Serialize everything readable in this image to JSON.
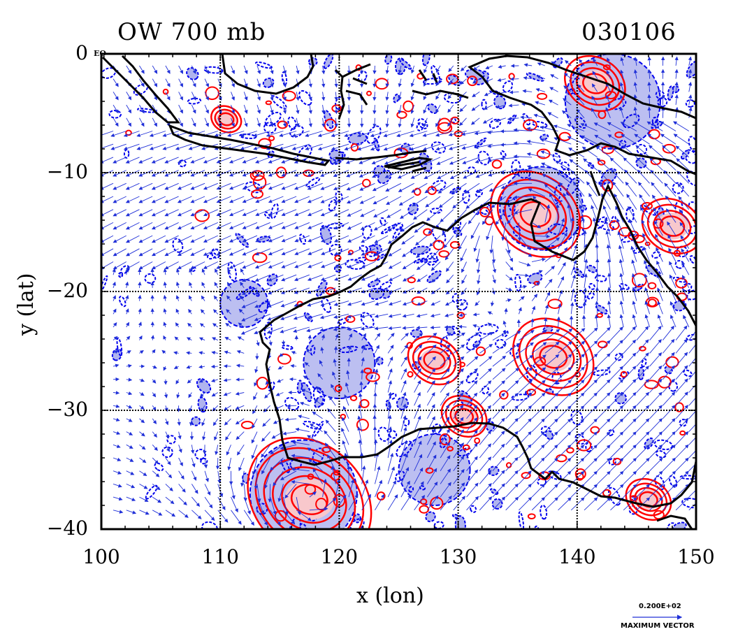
{
  "title": {
    "left": "OW 700 mb",
    "right": "030106"
  },
  "corner_tag": "EQ",
  "axes": {
    "xlabel": "x (lon)",
    "ylabel": "y (lat)",
    "xticks": [
      "100",
      "110",
      "120",
      "130",
      "140",
      "150"
    ],
    "yticks": [
      "0",
      "−10",
      "−20",
      "−30",
      "−40"
    ],
    "xrange": [
      100,
      150
    ],
    "yrange": [
      -40,
      0
    ],
    "grid": true
  },
  "reference_vector": {
    "value": "0.200E+02",
    "label": "MAXIMUM VECTOR"
  },
  "colors": {
    "coastline": "#000000",
    "positive_contour": "#ff0000",
    "positive_fill": "#f8c8cc",
    "negative_contour": "#0000ee",
    "negative_fill": "#b0b4ee",
    "vector": "#2030d8",
    "grid": "#000000"
  },
  "features": {
    "positive_centers": [
      {
        "lon": 117.5,
        "lat": -37.5,
        "strength": 1.0
      },
      {
        "lon": 136.5,
        "lat": -13.5,
        "strength": 0.8
      },
      {
        "lon": 138.0,
        "lat": -25.5,
        "strength": 0.7
      },
      {
        "lon": 128.0,
        "lat": -25.8,
        "strength": 0.5
      },
      {
        "lon": 141.5,
        "lat": -2.5,
        "strength": 0.6
      },
      {
        "lon": 148.0,
        "lat": -14.5,
        "strength": 0.6
      },
      {
        "lon": 130.5,
        "lat": -30.5,
        "strength": 0.4
      },
      {
        "lon": 110.5,
        "lat": -5.5,
        "strength": 0.3
      },
      {
        "lon": 146.0,
        "lat": -37.5,
        "strength": 0.4
      }
    ],
    "negative_regions": [
      {
        "lon": 117.0,
        "lat": -37.0,
        "radius": 4.5
      },
      {
        "lon": 137.0,
        "lat": -13.0,
        "radius": 3.5
      },
      {
        "lon": 143.0,
        "lat": -4.0,
        "radius": 4.0
      },
      {
        "lon": 128.0,
        "lat": -35.0,
        "radius": 3.0
      },
      {
        "lon": 120.0,
        "lat": -26.0,
        "radius": 3.0
      },
      {
        "lon": 112.0,
        "lat": -21.0,
        "radius": 2.0
      }
    ]
  }
}
